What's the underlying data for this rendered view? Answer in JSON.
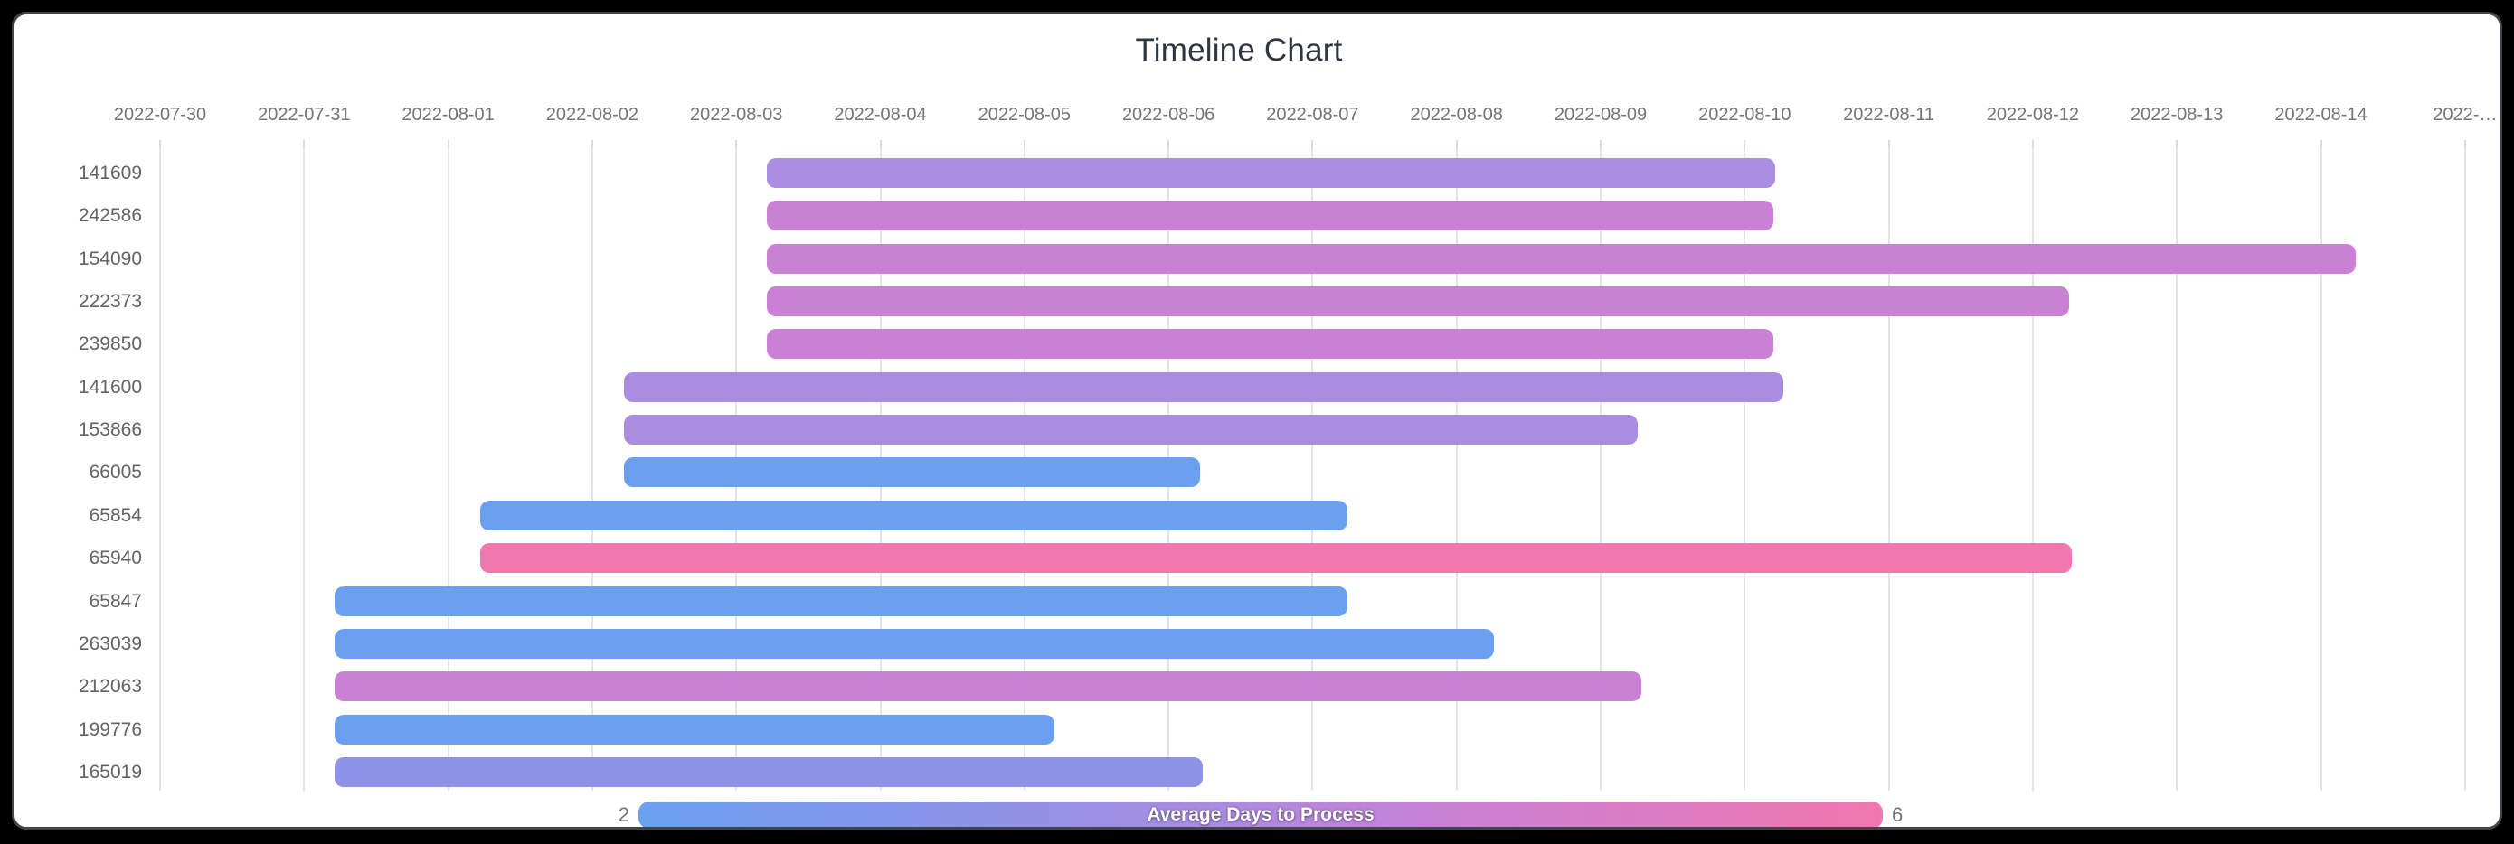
{
  "window": {
    "frame_color": "#000000",
    "card_background": "#ffffff",
    "card_border_color": "#41464c"
  },
  "chart_data": {
    "type": "bar",
    "subtype": "timeline-gantt",
    "title": "Timeline Chart",
    "grid": true,
    "x_axis": {
      "kind": "date",
      "start": "2022-07-30",
      "tick_labels": [
        "2022-07-30",
        "2022-07-31",
        "2022-08-01",
        "2022-08-02",
        "2022-08-03",
        "2022-08-04",
        "2022-08-05",
        "2022-08-06",
        "2022-08-07",
        "2022-08-08",
        "2022-08-09",
        "2022-08-10",
        "2022-08-11",
        "2022-08-12",
        "2022-08-13",
        "2022-08-14",
        "2022-…"
      ]
    },
    "y_axis": {
      "labels": [
        "141609",
        "242586",
        "154090",
        "222373",
        "239850",
        "141600",
        "153866",
        "66005",
        "65854",
        "65940",
        "65847",
        "263039",
        "212063",
        "199776",
        "165019"
      ]
    },
    "rows": [
      {
        "id": "141609",
        "start": "2022-08-03",
        "end": "2022-08-10",
        "duration_days": 7,
        "start_offset": 4.21,
        "end_offset": 11.21,
        "color": "#aa8ce0"
      },
      {
        "id": "242586",
        "start": "2022-08-03",
        "end": "2022-08-10",
        "duration_days": 7,
        "start_offset": 4.21,
        "end_offset": 11.2,
        "color": "#ca80d4"
      },
      {
        "id": "154090",
        "start": "2022-08-03",
        "end": "2022-08-14",
        "duration_days": 11,
        "start_offset": 4.21,
        "end_offset": 15.24,
        "color": "#ca80d4"
      },
      {
        "id": "222373",
        "start": "2022-08-03",
        "end": "2022-08-12",
        "duration_days": 9,
        "start_offset": 4.21,
        "end_offset": 13.25,
        "color": "#ca80d4"
      },
      {
        "id": "239850",
        "start": "2022-08-03",
        "end": "2022-08-10",
        "duration_days": 7,
        "start_offset": 4.21,
        "end_offset": 11.2,
        "color": "#ca80d4"
      },
      {
        "id": "141600",
        "start": "2022-08-02",
        "end": "2022-08-10",
        "duration_days": 8,
        "start_offset": 3.22,
        "end_offset": 11.27,
        "color": "#aa8ce0"
      },
      {
        "id": "153866",
        "start": "2022-08-02",
        "end": "2022-08-09",
        "duration_days": 7,
        "start_offset": 3.22,
        "end_offset": 10.26,
        "color": "#aa8ce0"
      },
      {
        "id": "66005",
        "start": "2022-08-02",
        "end": "2022-08-06",
        "duration_days": 4,
        "start_offset": 3.22,
        "end_offset": 7.22,
        "color": "#6ba0f1"
      },
      {
        "id": "65854",
        "start": "2022-08-01",
        "end": "2022-08-07",
        "duration_days": 6,
        "start_offset": 2.22,
        "end_offset": 8.24,
        "color": "#6ba0f1"
      },
      {
        "id": "65940",
        "start": "2022-08-01",
        "end": "2022-08-12",
        "duration_days": 11,
        "start_offset": 2.22,
        "end_offset": 13.27,
        "color": "#f177ae"
      },
      {
        "id": "65847",
        "start": "2022-07-31",
        "end": "2022-08-07",
        "duration_days": 7,
        "start_offset": 1.21,
        "end_offset": 8.24,
        "color": "#6ba0f1"
      },
      {
        "id": "263039",
        "start": "2022-07-31",
        "end": "2022-08-08",
        "duration_days": 8,
        "start_offset": 1.21,
        "end_offset": 9.26,
        "color": "#6ba0f1"
      },
      {
        "id": "212063",
        "start": "2022-07-31",
        "end": "2022-08-09",
        "duration_days": 9,
        "start_offset": 1.21,
        "end_offset": 10.28,
        "color": "#ca80d4"
      },
      {
        "id": "199776",
        "start": "2022-07-31",
        "end": "2022-08-05",
        "duration_days": 5,
        "start_offset": 1.21,
        "end_offset": 6.21,
        "color": "#6ba0f1"
      },
      {
        "id": "165019",
        "start": "2022-07-31",
        "end": "2022-08-06",
        "duration_days": 6,
        "start_offset": 1.21,
        "end_offset": 7.24,
        "color": "#8e92e8"
      }
    ],
    "legend": {
      "label": "Average Days to Process",
      "min": "2",
      "max": "6",
      "legend_position": "bottom",
      "gradient": [
        "#6ba0f1",
        "#8e92e8",
        "#aa8ce0",
        "#ca80d4",
        "#f177ae"
      ]
    }
  }
}
